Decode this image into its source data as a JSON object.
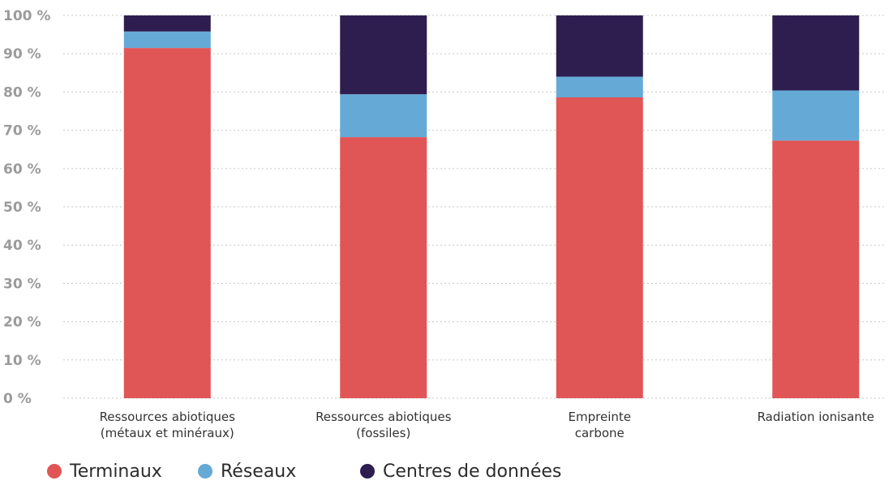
{
  "chart_data": {
    "type": "bar",
    "stacked": true,
    "categories": [
      [
        "Ressources abiotiques",
        "(métaux et minéraux)"
      ],
      [
        "Ressources abiotiques",
        "(fossiles)"
      ],
      [
        "Empreinte",
        "carbone"
      ],
      [
        "Radiation ionisante"
      ]
    ],
    "series": [
      {
        "name": "Terminaux",
        "color": "#e05555",
        "values": [
          91.5,
          68.2,
          78.6,
          67.3
        ]
      },
      {
        "name": "Réseaux",
        "color": "#65aad6",
        "values": [
          4.3,
          11.2,
          5.4,
          13.1
        ]
      },
      {
        "name": "Centres de données",
        "color": "#2e1e4f",
        "values": [
          4.2,
          20.6,
          16.0,
          19.6
        ]
      }
    ],
    "ylim": [
      0,
      100
    ],
    "yticks": [
      "0 %",
      "10 %",
      "20 %",
      "30 %",
      "40 %",
      "50 %",
      "60 %",
      "70 %",
      "80 %",
      "90 %",
      "100 %"
    ],
    "grid": true,
    "legend_position": "bottom-left"
  }
}
